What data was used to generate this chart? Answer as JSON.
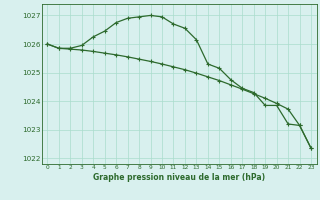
{
  "line1_x": [
    0,
    1,
    2,
    3,
    4,
    5,
    6,
    7,
    8,
    9,
    10,
    11,
    12,
    13,
    14,
    15,
    16,
    17,
    18,
    19,
    20,
    21,
    22,
    23
  ],
  "line1_y": [
    1026.0,
    1025.85,
    1025.85,
    1025.95,
    1026.25,
    1026.45,
    1026.75,
    1026.9,
    1026.95,
    1027.0,
    1026.95,
    1026.7,
    1026.55,
    1026.15,
    1025.3,
    1025.15,
    1024.75,
    1024.45,
    1024.3,
    1023.85,
    1023.85,
    1023.2,
    1023.15,
    1022.35
  ],
  "line2_x": [
    0,
    1,
    2,
    3,
    4,
    5,
    6,
    7,
    8,
    9,
    10,
    11,
    12,
    13,
    14,
    15,
    16,
    17,
    18,
    19,
    20,
    21,
    22,
    23
  ],
  "line2_y": [
    1026.0,
    1025.85,
    1025.82,
    1025.79,
    1025.74,
    1025.68,
    1025.62,
    1025.55,
    1025.47,
    1025.39,
    1025.3,
    1025.2,
    1025.1,
    1024.98,
    1024.85,
    1024.72,
    1024.57,
    1024.42,
    1024.26,
    1024.1,
    1023.92,
    1023.72,
    1023.15,
    1022.35
  ],
  "line_color": "#2d6a2d",
  "bg_color": "#d8f0ee",
  "grid_color": "#aaddcc",
  "xlabel": "Graphe pression niveau de la mer (hPa)",
  "ylim": [
    1021.8,
    1027.4
  ],
  "xlim": [
    -0.5,
    23.5
  ],
  "yticks": [
    1022,
    1023,
    1024,
    1025,
    1026,
    1027
  ],
  "xticks": [
    0,
    1,
    2,
    3,
    4,
    5,
    6,
    7,
    8,
    9,
    10,
    11,
    12,
    13,
    14,
    15,
    16,
    17,
    18,
    19,
    20,
    21,
    22,
    23
  ],
  "xlabel_fontsize": 5.5,
  "xtick_fontsize": 4.2,
  "ytick_fontsize": 5.2
}
